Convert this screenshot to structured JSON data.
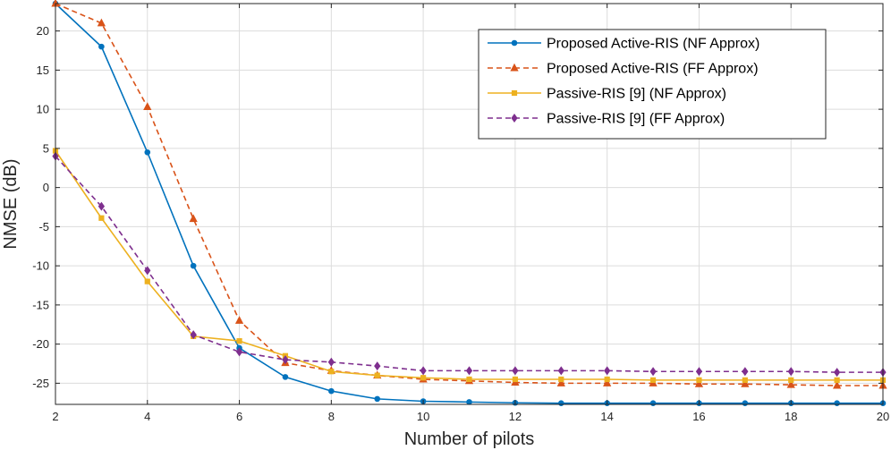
{
  "chart_data": {
    "type": "line",
    "title": "",
    "xlabel": "Number of pilots",
    "ylabel": "NMSE (dB)",
    "xlim": [
      2,
      20
    ],
    "ylim": [
      -27.7,
      23.5
    ],
    "xticks": [
      2,
      4,
      6,
      8,
      10,
      12,
      14,
      16,
      18,
      20
    ],
    "yticks": [
      -25,
      -20,
      -15,
      -10,
      -5,
      0,
      5,
      10,
      15,
      20
    ],
    "grid": true,
    "legend_position": "top-right",
    "x": [
      2,
      3,
      4,
      5,
      6,
      7,
      8,
      9,
      10,
      11,
      12,
      13,
      14,
      15,
      16,
      17,
      18,
      19,
      20
    ],
    "series": [
      {
        "name": "Proposed Active-RIS (NF Approx)",
        "color": "#0072BD",
        "dash": "solid",
        "marker": "circle",
        "values": [
          23.5,
          18.0,
          4.5,
          -10.0,
          -20.5,
          -24.2,
          -26.0,
          -27.0,
          -27.3,
          -27.4,
          -27.5,
          -27.55,
          -27.55,
          -27.55,
          -27.55,
          -27.55,
          -27.55,
          -27.55,
          -27.55
        ]
      },
      {
        "name": "Proposed Active-RIS (FF Approx)",
        "color": "#D95319",
        "dash": "dashed",
        "marker": "triangle",
        "values": [
          23.5,
          21.0,
          10.3,
          -4.0,
          -17.0,
          -22.4,
          -23.4,
          -24.0,
          -24.5,
          -24.7,
          -24.9,
          -25.0,
          -25.0,
          -25.0,
          -25.1,
          -25.1,
          -25.2,
          -25.3,
          -25.3
        ]
      },
      {
        "name": "Passive-RIS [9] (NF Approx)",
        "color": "#EDB120",
        "dash": "solid",
        "marker": "square",
        "values": [
          4.7,
          -3.9,
          -12.0,
          -19.0,
          -19.6,
          -21.5,
          -23.5,
          -24.0,
          -24.3,
          -24.5,
          -24.5,
          -24.5,
          -24.5,
          -24.6,
          -24.6,
          -24.6,
          -24.6,
          -24.6,
          -24.6
        ]
      },
      {
        "name": "Passive-RIS [9] (FF Approx)",
        "color": "#7E2F8E",
        "dash": "dashed",
        "marker": "diamond",
        "values": [
          4.0,
          -2.4,
          -10.6,
          -18.8,
          -21.0,
          -22.0,
          -22.3,
          -22.8,
          -23.4,
          -23.4,
          -23.4,
          -23.4,
          -23.4,
          -23.5,
          -23.5,
          -23.5,
          -23.5,
          -23.6,
          -23.6
        ]
      }
    ]
  }
}
